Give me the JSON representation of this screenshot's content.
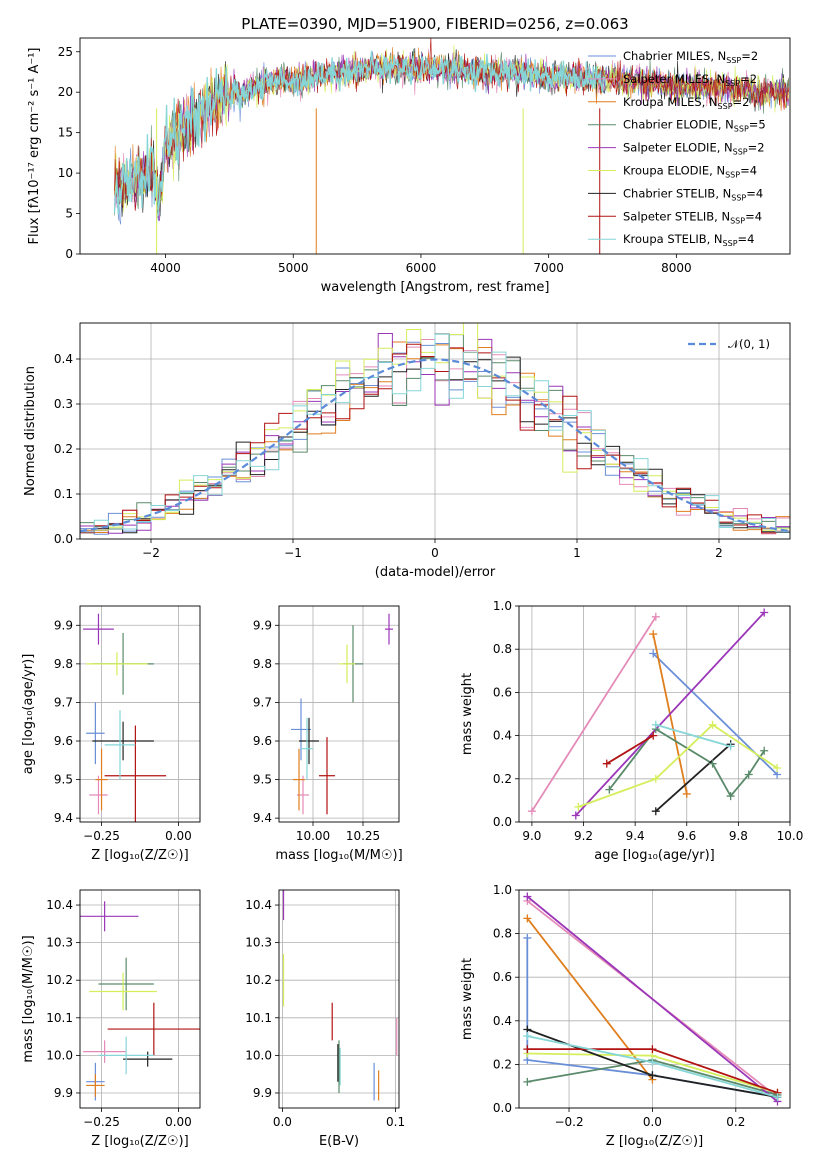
{
  "title": "PLATE=0390, MJD=51900, FIBERID=0256, z=0.063",
  "colors": [
    "#6a8fd8",
    "#e48ab8",
    "#e07e1e",
    "#5a8a6a",
    "#9b36b8",
    "#d4ee5c",
    "#222222",
    "#b21212",
    "#86d6d8"
  ],
  "models": [
    {
      "imf": "Chabrier",
      "lib": "MILES",
      "nssp": "2"
    },
    {
      "imf": "Salpeter",
      "lib": "MILES",
      "nssp": "2"
    },
    {
      "imf": "Kroupa",
      "lib": "MILES",
      "nssp": "2"
    },
    {
      "imf": "Chabrier",
      "lib": "ELODIE",
      "nssp": "5"
    },
    {
      "imf": "Salpeter",
      "lib": "ELODIE",
      "nssp": "2"
    },
    {
      "imf": "Kroupa",
      "lib": "ELODIE",
      "nssp": "4"
    },
    {
      "imf": "Chabrier",
      "lib": "STELIB",
      "nssp": "4"
    },
    {
      "imf": "Salpeter",
      "lib": "STELIB",
      "nssp": "4"
    },
    {
      "imf": "Kroupa",
      "lib": "STELIB",
      "nssp": "4"
    }
  ],
  "chart_data": [
    {
      "id": "spectrum",
      "type": "line",
      "xlabel": "wavelength [Angstrom, rest frame]",
      "ylabel": "Flux [fλ10⁻¹⁷ erg cm⁻² s⁻¹ A⁻¹]",
      "xlim": [
        3330,
        8890
      ],
      "ylim": [
        0,
        26.7
      ],
      "xticks": [
        4000,
        5000,
        6000,
        7000,
        8000
      ],
      "yticks": [
        0,
        5,
        10,
        15,
        20,
        25
      ],
      "envelope": {
        "x": [
          3600,
          3700,
          3800,
          3900,
          3950,
          4000,
          4100,
          4200,
          4300,
          4400,
          4500,
          4600,
          4700,
          4800,
          4900,
          5000,
          5200,
          5400,
          5600,
          5800,
          6000,
          6200,
          6400,
          6600,
          6800,
          7000,
          7200,
          7400,
          7600,
          7800,
          8000,
          8200,
          8400,
          8600,
          8800
        ],
        "y": [
          8,
          8.5,
          9.5,
          11,
          6,
          14,
          15,
          16.5,
          17.5,
          19,
          19.5,
          20,
          20.5,
          21,
          21.5,
          21.5,
          22,
          22.5,
          23,
          23,
          23,
          23,
          22.5,
          22.5,
          22.5,
          22,
          22,
          21.5,
          21.5,
          21,
          21,
          20.5,
          20.5,
          20,
          20
        ]
      },
      "legend": "upper right",
      "grid": false
    },
    {
      "id": "residuals",
      "type": "histogram",
      "xlabel": "(data-model)/error",
      "ylabel": "Normed distribution",
      "xlim": [
        -2.5,
        2.5
      ],
      "ylim": [
        0,
        0.48
      ],
      "xticks": [
        -2,
        -1,
        0,
        1,
        2
      ],
      "yticks": [
        0.0,
        0.1,
        0.2,
        0.3,
        0.4
      ],
      "bin_width": 0.1,
      "reference": {
        "label": "𝒩(0, 1)",
        "mean": 0,
        "sigma": 1
      },
      "legend": "upper right",
      "grid": true
    },
    {
      "id": "age_vs_Z",
      "type": "errorbar",
      "xlabel": "Z [log₁₀(Z/Z☉)]",
      "ylabel": "age  [log₁₀(age/yr)]",
      "xlim": [
        -0.32,
        0.07
      ],
      "ylim": [
        9.39,
        9.95
      ],
      "xticks": [
        -0.25,
        0.0
      ],
      "yticks": [
        9.4,
        9.5,
        9.6,
        9.7,
        9.8,
        9.9
      ],
      "points": [
        {
          "model": 0,
          "x": -0.27,
          "xerr": 0.03,
          "y": 9.62,
          "yerr": 0.08
        },
        {
          "model": 1,
          "x": -0.26,
          "xerr": 0.03,
          "y": 9.46,
          "yerr": 0.05
        },
        {
          "model": 2,
          "x": -0.25,
          "xerr": 0.02,
          "y": 9.5,
          "yerr": 0.08
        },
        {
          "model": 3,
          "x": -0.18,
          "xerr": 0.1,
          "y": 9.8,
          "yerr": 0.08
        },
        {
          "model": 4,
          "x": -0.26,
          "xerr": 0.05,
          "y": 9.89,
          "yerr": 0.04
        },
        {
          "model": 5,
          "x": -0.2,
          "xerr": 0.1,
          "y": 9.8,
          "yerr": 0.03
        },
        {
          "model": 6,
          "x": -0.18,
          "xerr": 0.1,
          "y": 9.6,
          "yerr": 0.05
        },
        {
          "model": 7,
          "x": -0.14,
          "xerr": 0.1,
          "y": 9.51,
          "yerr": 0.13
        },
        {
          "model": 8,
          "x": -0.19,
          "xerr": 0.05,
          "y": 9.59,
          "yerr": 0.09
        }
      ],
      "grid": true
    },
    {
      "id": "age_vs_mass",
      "type": "errorbar",
      "xlabel": "mass [log₁₀(M/M☉)]",
      "ylabel": "",
      "xlim": [
        9.83,
        10.43
      ],
      "ylim": [
        9.39,
        9.95
      ],
      "xticks": [
        10.0,
        10.25
      ],
      "yticks": [
        9.4,
        9.5,
        9.6,
        9.7,
        9.8,
        9.9
      ],
      "points": [
        {
          "model": 0,
          "x": 9.94,
          "xerr": 0.05,
          "y": 9.63,
          "yerr": 0.08
        },
        {
          "model": 1,
          "x": 9.95,
          "xerr": 0.03,
          "y": 9.46,
          "yerr": 0.05
        },
        {
          "model": 2,
          "x": 9.93,
          "xerr": 0.03,
          "y": 9.5,
          "yerr": 0.08
        },
        {
          "model": 3,
          "x": 10.2,
          "xerr": 0.05,
          "y": 9.8,
          "yerr": 0.1
        },
        {
          "model": 4,
          "x": 10.38,
          "xerr": 0.02,
          "y": 9.89,
          "yerr": 0.04
        },
        {
          "model": 5,
          "x": 10.17,
          "xerr": 0.04,
          "y": 9.8,
          "yerr": 0.05
        },
        {
          "model": 6,
          "x": 9.98,
          "xerr": 0.05,
          "y": 9.6,
          "yerr": 0.06
        },
        {
          "model": 7,
          "x": 10.07,
          "xerr": 0.04,
          "y": 9.51,
          "yerr": 0.1
        },
        {
          "model": 8,
          "x": 9.97,
          "xerr": 0.03,
          "y": 9.58,
          "yerr": 0.08
        }
      ],
      "grid": true
    },
    {
      "id": "weight_vs_age",
      "type": "line",
      "xlabel": "age  [log₁₀(age/yr)]",
      "ylabel": "mass weight",
      "xlim": [
        8.95,
        10.0
      ],
      "ylim": [
        0,
        1
      ],
      "xticks": [
        9.0,
        9.2,
        9.4,
        9.6,
        9.8,
        10.0
      ],
      "yticks": [
        0.0,
        0.2,
        0.4,
        0.6,
        0.8,
        1.0
      ],
      "series": [
        {
          "model": 0,
          "x": [
            9.47,
            9.95
          ],
          "y": [
            0.78,
            0.22
          ]
        },
        {
          "model": 1,
          "x": [
            9.0,
            9.48
          ],
          "y": [
            0.05,
            0.95
          ]
        },
        {
          "model": 2,
          "x": [
            9.47,
            9.6
          ],
          "y": [
            0.87,
            0.13
          ]
        },
        {
          "model": 3,
          "x": [
            9.3,
            9.48,
            9.7,
            9.77,
            9.84,
            9.9
          ],
          "y": [
            0.15,
            0.43,
            0.27,
            0.12,
            0.22,
            0.33
          ]
        },
        {
          "model": 4,
          "x": [
            9.17,
            9.9
          ],
          "y": [
            0.03,
            0.97
          ]
        },
        {
          "model": 5,
          "x": [
            9.18,
            9.48,
            9.7,
            9.95
          ],
          "y": [
            0.07,
            0.2,
            0.45,
            0.25
          ]
        },
        {
          "model": 6,
          "x": [
            9.48,
            9.77
          ],
          "y": [
            0.05,
            0.36
          ]
        },
        {
          "model": 7,
          "x": [
            9.29,
            9.47
          ],
          "y": [
            0.27,
            0.4
          ]
        },
        {
          "model": 8,
          "x": [
            9.48,
            9.77
          ],
          "y": [
            0.45,
            0.35
          ]
        }
      ],
      "grid": true
    },
    {
      "id": "mass_vs_Z",
      "type": "errorbar",
      "xlabel": "Z [log₁₀(Z/Z☉)]",
      "ylabel": "mass [log₁₀(M/M☉)]",
      "xlim": [
        -0.32,
        0.07
      ],
      "ylim": [
        9.86,
        10.44
      ],
      "xticks": [
        -0.25,
        0.0
      ],
      "yticks": [
        9.9,
        10.0,
        10.1,
        10.2,
        10.3,
        10.4
      ],
      "points": [
        {
          "model": 0,
          "x": -0.27,
          "xerr": 0.03,
          "y": 9.93,
          "yerr": 0.05
        },
        {
          "model": 1,
          "x": -0.24,
          "xerr": 0.07,
          "y": 10.01,
          "yerr": 0.03
        },
        {
          "model": 2,
          "x": -0.27,
          "xerr": 0.03,
          "y": 9.92,
          "yerr": 0.03
        },
        {
          "model": 3,
          "x": -0.17,
          "xerr": 0.09,
          "y": 10.19,
          "yerr": 0.07
        },
        {
          "model": 4,
          "x": -0.24,
          "xerr": 0.11,
          "y": 10.37,
          "yerr": 0.04
        },
        {
          "model": 5,
          "x": -0.18,
          "xerr": 0.11,
          "y": 10.17,
          "yerr": 0.05
        },
        {
          "model": 6,
          "x": -0.1,
          "xerr": 0.08,
          "y": 9.99,
          "yerr": 0.02
        },
        {
          "model": 7,
          "x": -0.08,
          "xerr": 0.15,
          "y": 10.07,
          "yerr": 0.07
        },
        {
          "model": 8,
          "x": -0.17,
          "xerr": 0.09,
          "y": 10.0,
          "yerr": 0.05
        }
      ],
      "grid": true
    },
    {
      "id": "mass_vs_ebv",
      "type": "errorbar",
      "xlabel": "E(B-V)",
      "ylabel": "",
      "xlim": [
        -0.003,
        0.103
      ],
      "ylim": [
        9.86,
        10.44
      ],
      "xticks": [
        0.0,
        0.1
      ],
      "yticks": [
        9.9,
        10.0,
        10.1,
        10.2,
        10.3,
        10.4
      ],
      "points": [
        {
          "model": 0,
          "x": 0.081,
          "xerr": 0.0,
          "y": 9.93,
          "yerr": 0.05
        },
        {
          "model": 1,
          "x": 0.101,
          "xerr": 0.0,
          "y": 10.05,
          "yerr": 0.05
        },
        {
          "model": 2,
          "x": 0.085,
          "xerr": 0.0,
          "y": 9.92,
          "yerr": 0.04
        },
        {
          "model": 3,
          "x": 0.05,
          "xerr": 0.0,
          "y": 9.97,
          "yerr": 0.07
        },
        {
          "model": 4,
          "x": 0.001,
          "xerr": 0.0,
          "y": 10.4,
          "yerr": 0.04
        },
        {
          "model": 5,
          "x": 0.001,
          "xerr": 0.0,
          "y": 10.2,
          "yerr": 0.07
        },
        {
          "model": 6,
          "x": 0.049,
          "xerr": 0.0,
          "y": 9.98,
          "yerr": 0.05
        },
        {
          "model": 7,
          "x": 0.044,
          "xerr": 0.0,
          "y": 10.09,
          "yerr": 0.05
        },
        {
          "model": 8,
          "x": 0.051,
          "xerr": 0.0,
          "y": 9.97,
          "yerr": 0.05
        }
      ],
      "grid": true
    },
    {
      "id": "weight_vs_Z",
      "type": "line",
      "xlabel": "Z [log₁₀(Z/Z☉)]",
      "ylabel": "mass weight",
      "xlim": [
        -0.32,
        0.33
      ],
      "ylim": [
        0,
        1
      ],
      "xticks": [
        -0.2,
        0.0,
        0.2
      ],
      "yticks": [
        0.0,
        0.2,
        0.4,
        0.6,
        0.8,
        1.0
      ],
      "series": [
        {
          "model": 0,
          "x": [
            -0.3,
            -0.3,
            0.0,
            0.3
          ],
          "y": [
            0.78,
            0.22,
            0.15,
            0.05
          ]
        },
        {
          "model": 1,
          "x": [
            -0.3,
            0.3
          ],
          "y": [
            0.95,
            0.05
          ]
        },
        {
          "model": 2,
          "x": [
            -0.3,
            0.0
          ],
          "y": [
            0.87,
            0.13
          ]
        },
        {
          "model": 3,
          "x": [
            -0.3,
            0.0,
            0.3
          ],
          "y": [
            0.12,
            0.22,
            0.06
          ]
        },
        {
          "model": 4,
          "x": [
            -0.3,
            0.3
          ],
          "y": [
            0.97,
            0.03
          ]
        },
        {
          "model": 5,
          "x": [
            -0.3,
            0.0,
            0.3
          ],
          "y": [
            0.25,
            0.24,
            0.07
          ]
        },
        {
          "model": 6,
          "x": [
            -0.3,
            0.0,
            0.3
          ],
          "y": [
            0.36,
            0.15,
            0.05
          ]
        },
        {
          "model": 7,
          "x": [
            -0.3,
            0.0,
            0.3
          ],
          "y": [
            0.27,
            0.27,
            0.07
          ]
        },
        {
          "model": 8,
          "x": [
            -0.3,
            0.0,
            0.3
          ],
          "y": [
            0.33,
            0.21,
            0.05
          ]
        }
      ],
      "grid": true
    }
  ]
}
